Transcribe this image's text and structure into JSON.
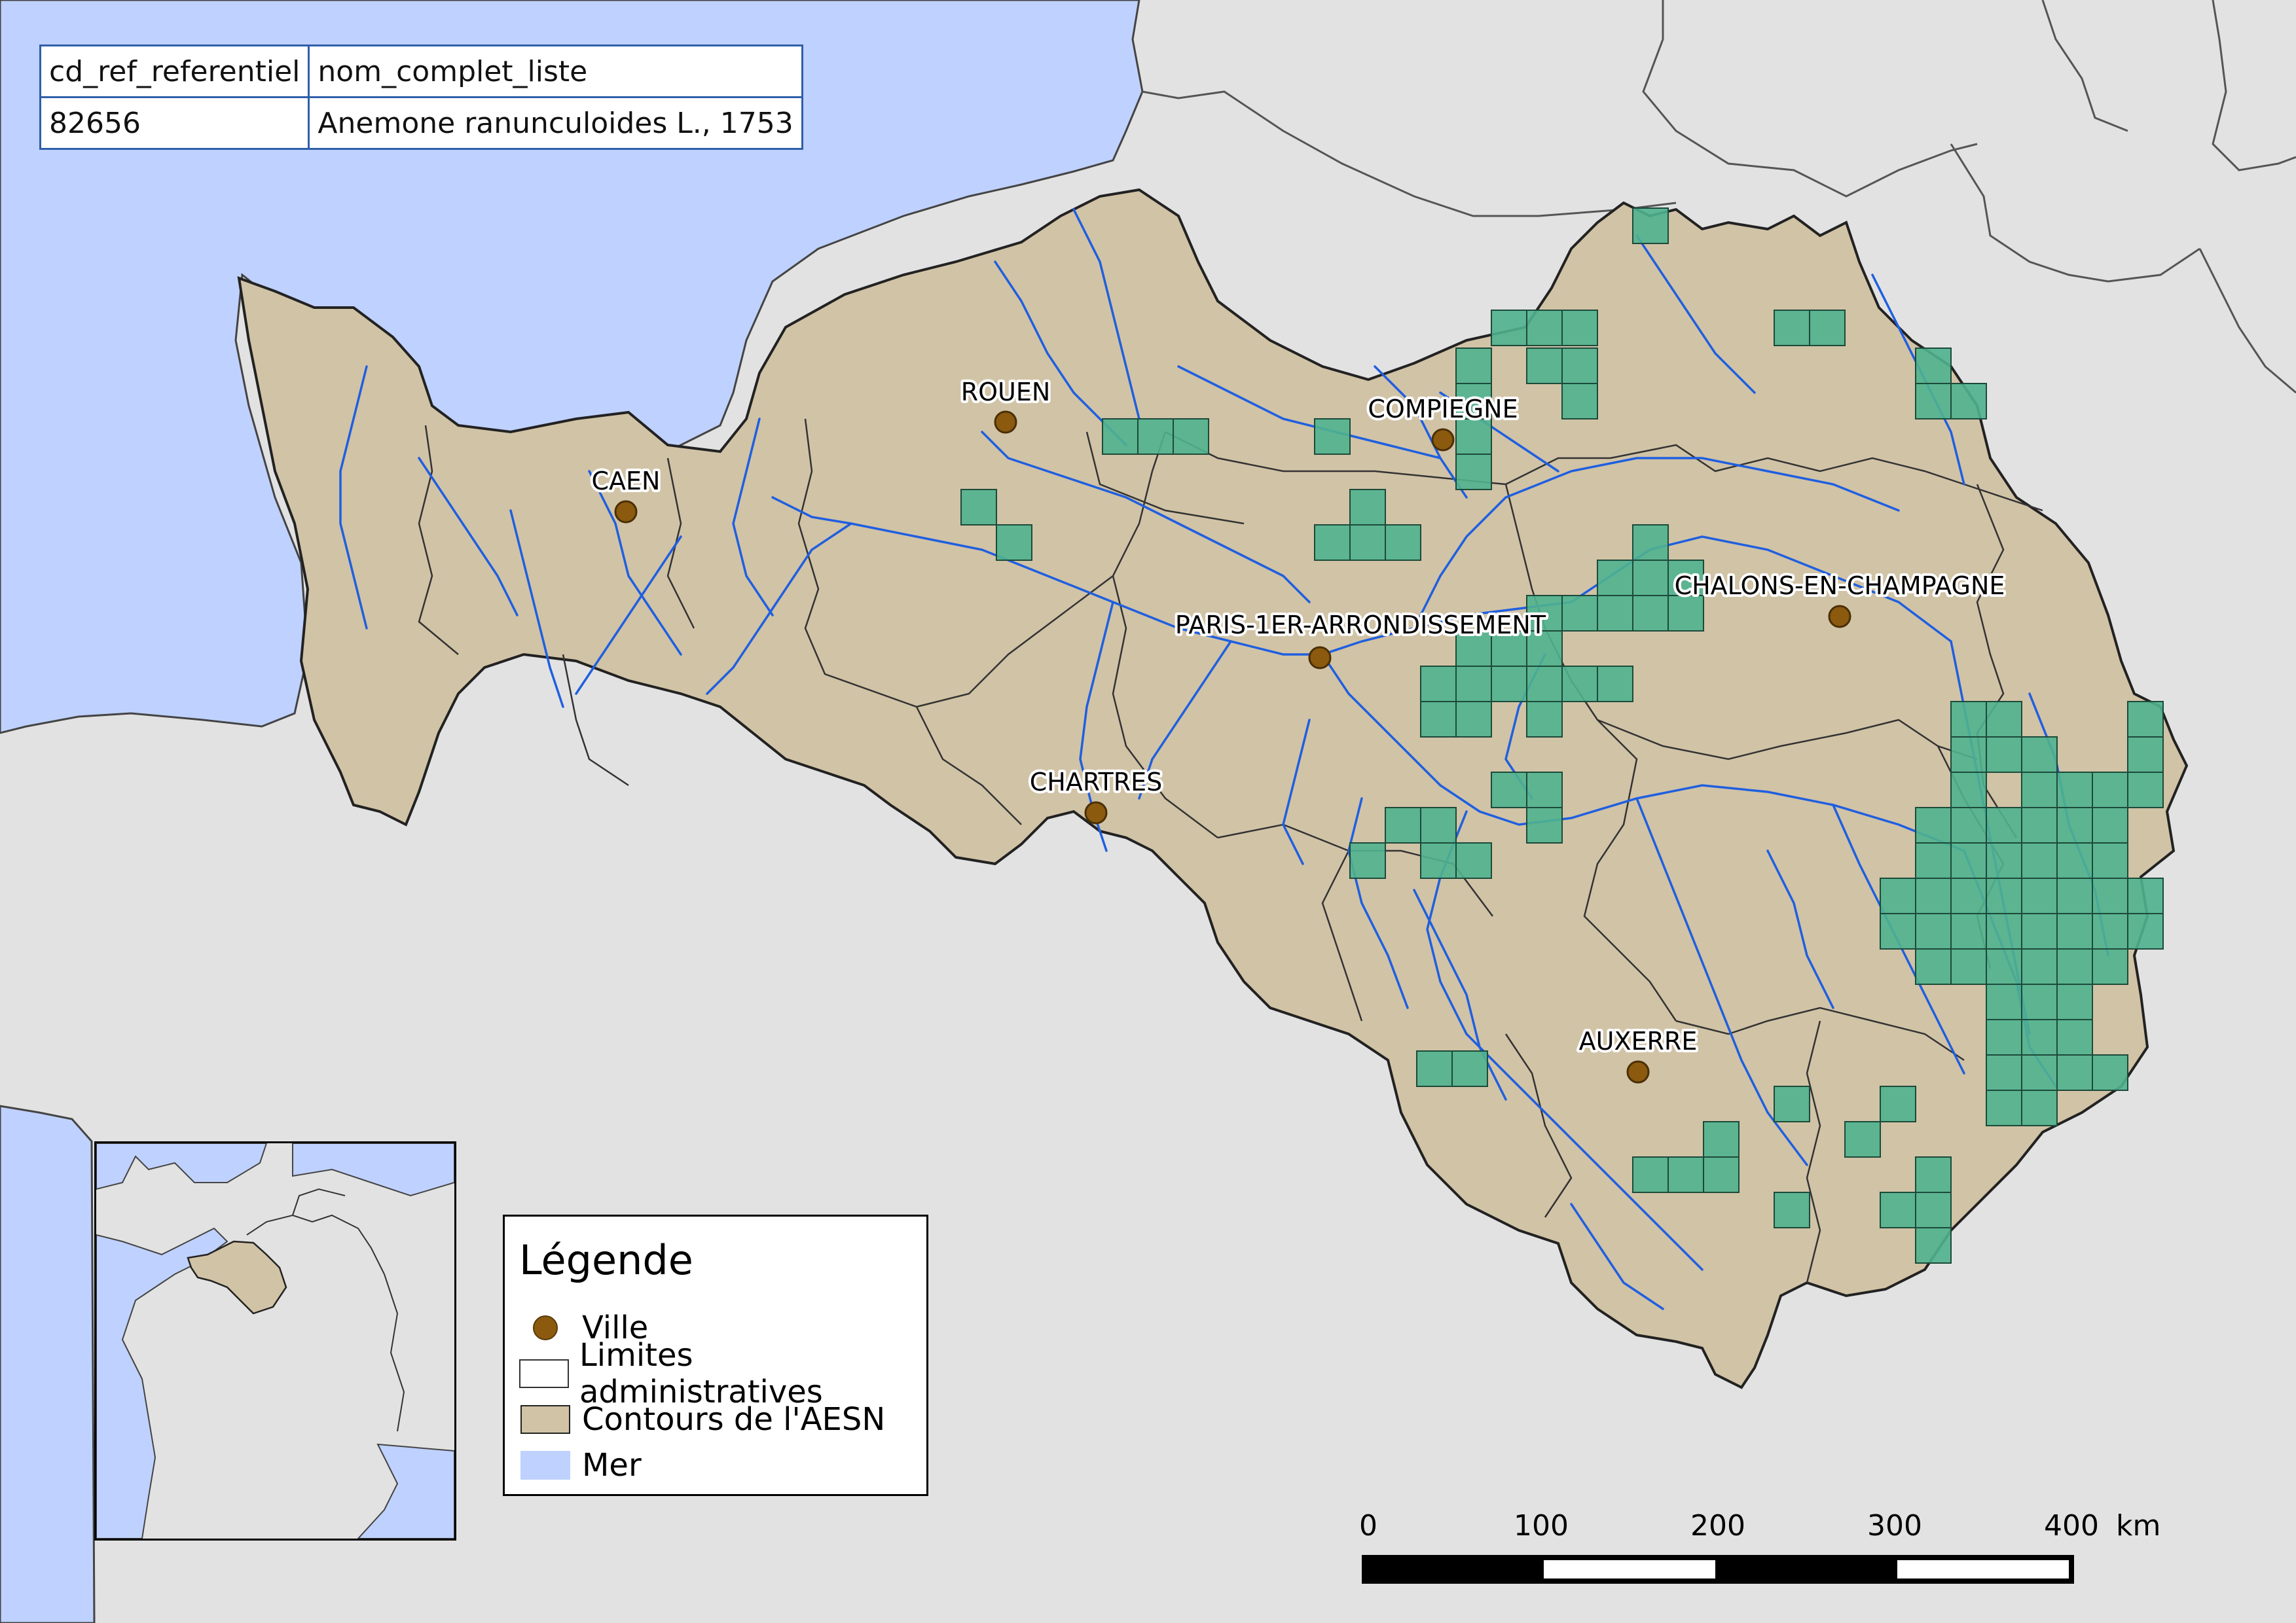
{
  "map": {
    "colors": {
      "sea": "#bfd1ff",
      "land": "#e2e2e2",
      "basin": "#d1c3a6",
      "river": "#1f5fe0",
      "grid_fill": "#4fb38f",
      "city": "#8b5a0f"
    },
    "table": {
      "headers": [
        "cd_ref_referentiel",
        "nom_complet_liste"
      ],
      "row": [
        "82656",
        "Anemone ranunculoides L., 1753"
      ]
    },
    "cities": [
      {
        "name": "ROUEN"
      },
      {
        "name": "CAEN"
      },
      {
        "name": "COMPIEGNE"
      },
      {
        "name": "CHALONS-EN-CHAMPAGNE"
      },
      {
        "name": "PARIS-1ER-ARRONDISSEMENT"
      },
      {
        "name": "CHARTRES"
      },
      {
        "name": "AUXERRE"
      }
    ],
    "legend": {
      "title": "Légende",
      "items": [
        {
          "label": "Ville",
          "symbol": "city-dot"
        },
        {
          "label": "Limites administratives",
          "symbol": "admin-box"
        },
        {
          "label": "Contours de l'AESN",
          "symbol": "basin-box"
        },
        {
          "label": "Mer",
          "symbol": "sea-box"
        }
      ]
    },
    "scale_bar": {
      "ticks": [
        "0",
        "100",
        "200",
        "300",
        "400"
      ],
      "unit": "km"
    }
  }
}
